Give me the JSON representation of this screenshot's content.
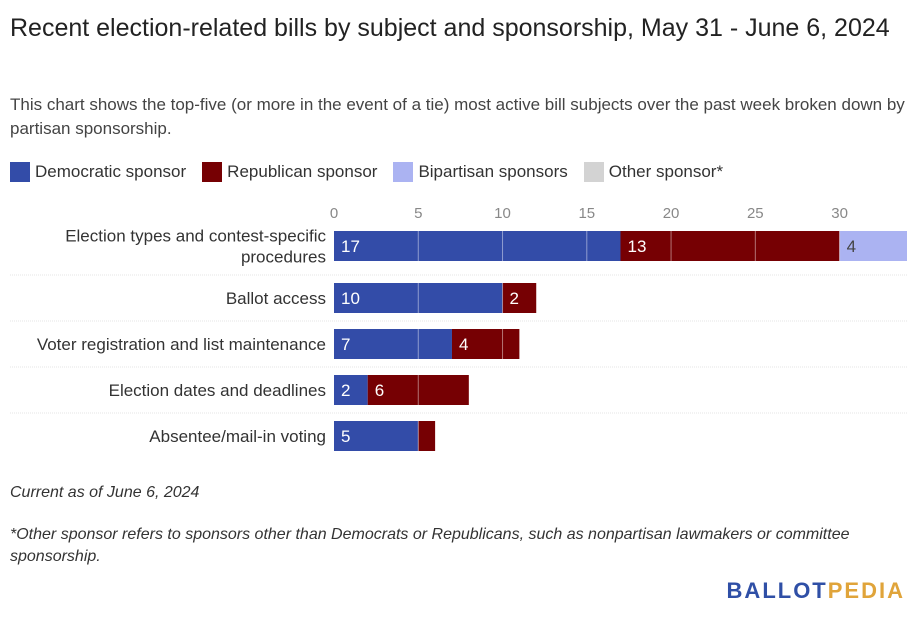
{
  "title": "Recent election-related bills by subject and sponsorship, May 31 - June 6, 2024",
  "subtitle": "This chart shows the top-five (or more in the event of a tie) most active bill subjects over the past week broken down by partisan sponsorship.",
  "legend": [
    {
      "label": "Democratic sponsor",
      "color": "#334ca8"
    },
    {
      "label": "Republican sponsor",
      "color": "#760003"
    },
    {
      "label": "Bipartisan sponsors",
      "color": "#abb3f2"
    },
    {
      "label": "Other sponsor*",
      "color": "#d3d3d3"
    }
  ],
  "chart_data": {
    "type": "bar",
    "orientation": "horizontal",
    "stacked": true,
    "categories": [
      "Election types and contest-specific procedures",
      "Ballot access",
      "Voter registration and list maintenance",
      "Election dates and deadlines",
      "Absentee/mail-in voting"
    ],
    "series": [
      {
        "name": "Democratic sponsor",
        "color": "#334ca8",
        "values": [
          17,
          10,
          7,
          2,
          5
        ]
      },
      {
        "name": "Republican sponsor",
        "color": "#760003",
        "values": [
          13,
          2,
          4,
          6,
          1
        ]
      },
      {
        "name": "Bipartisan sponsors",
        "color": "#abb3f2",
        "values": [
          4,
          0,
          0,
          0,
          0
        ]
      },
      {
        "name": "Other sponsor*",
        "color": "#d3d3d3",
        "values": [
          0,
          0,
          0,
          0,
          0
        ]
      }
    ],
    "xlim": [
      0,
      34
    ],
    "xticks": [
      0,
      5,
      10,
      15,
      20,
      25,
      30
    ],
    "grid": true,
    "legend_position": "top"
  },
  "notes": {
    "as_of": "Current as of June 6, 2024",
    "footnote": "*Other sponsor refers to sponsors other than Democrats or Republicans, such as nonpartisan lawmakers or committee sponsorship."
  },
  "brand": {
    "part1": "BALLOT",
    "part2": "PEDIA"
  }
}
